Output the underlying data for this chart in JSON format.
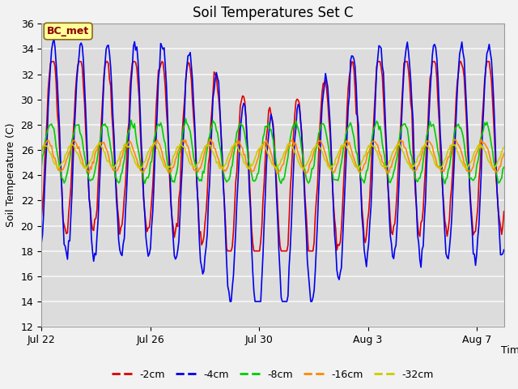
{
  "title": "Soil Temperatures Set C",
  "xlabel": "Time",
  "ylabel": "Soil Temperature (C)",
  "ylim": [
    12,
    36
  ],
  "yticks": [
    12,
    14,
    16,
    18,
    20,
    22,
    24,
    26,
    28,
    30,
    32,
    34,
    36
  ],
  "xtick_labels": [
    "Jul 22",
    "Jul 26",
    "Jul 30",
    "Aug 3",
    "Aug 7"
  ],
  "xtick_positions": [
    0,
    4,
    8,
    12,
    16
  ],
  "annotation_text": "BC_met",
  "annotation_color": "#8B0000",
  "annotation_bg": "#FFFF99",
  "annotation_border": "#8B6914",
  "legend_entries": [
    "-2cm",
    "-4cm",
    "-8cm",
    "-16cm",
    "-32cm"
  ],
  "line_colors": [
    "#DD0000",
    "#0000EE",
    "#00CC00",
    "#FF8800",
    "#CCCC00"
  ],
  "line_width": 1.2,
  "fig_bg_color": "#F2F2F2",
  "plot_bg_color": "#DCDCDC",
  "grid_color": "#F2F2F2",
  "title_fontsize": 12,
  "axis_fontsize": 9,
  "tick_fontsize": 9,
  "n_days": 17,
  "n_pts": 408
}
